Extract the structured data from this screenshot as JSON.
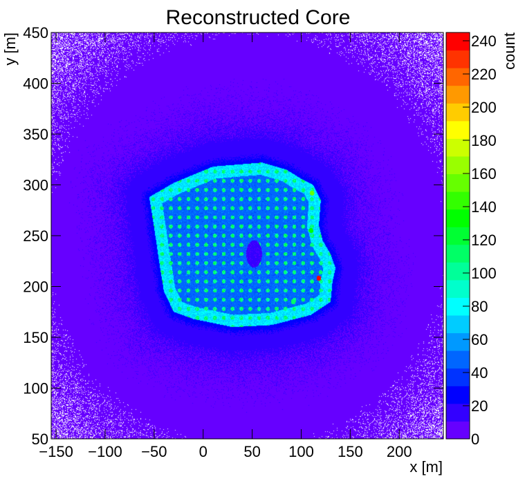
{
  "chart_data": {
    "type": "heatmap",
    "title": "Reconstructed Core",
    "xlabel": "x [m]",
    "ylabel": "y [m]",
    "zlabel": "count",
    "xlim": [
      -155,
      245
    ],
    "ylim": [
      50,
      450
    ],
    "zlim": [
      0,
      245
    ],
    "x_ticks": [
      -150,
      -100,
      -50,
      0,
      50,
      100,
      150,
      200
    ],
    "x_tick_labels": [
      "−150",
      "−100",
      "−50",
      "0",
      "50",
      "100",
      "150",
      "200"
    ],
    "y_ticks": [
      50,
      100,
      150,
      200,
      250,
      300,
      350,
      400,
      450
    ],
    "y_tick_labels": [
      "50",
      "100",
      "150",
      "200",
      "250",
      "300",
      "350",
      "400",
      "450"
    ],
    "z_ticks": [
      0,
      20,
      40,
      60,
      80,
      100,
      120,
      140,
      160,
      180,
      200,
      220,
      240
    ],
    "z_tick_labels": [
      "0",
      "20",
      "40",
      "60",
      "80",
      "100",
      "120",
      "140",
      "160",
      "180",
      "200",
      "220",
      "240"
    ],
    "palette": [
      "#6600ff",
      "#3300ff",
      "#0000ff",
      "#0033ff",
      "#0066ff",
      "#0099ff",
      "#00ccff",
      "#00ffff",
      "#00ffcc",
      "#00ff99",
      "#00ff66",
      "#00ff33",
      "#00ff00",
      "#33ff00",
      "#66ff00",
      "#99ff00",
      "#ccff00",
      "#ffff00",
      "#ffcc00",
      "#ff9900",
      "#ff6600",
      "#ff3300",
      "#ff0000"
    ],
    "empty_bin_color": "#ffffff",
    "grid": false,
    "background_level": 8,
    "array_footprint": [
      [
        -55,
        288
      ],
      [
        -30,
        302
      ],
      [
        10,
        318
      ],
      [
        60,
        322
      ],
      [
        85,
        315
      ],
      [
        100,
        306
      ],
      [
        112,
        300
      ],
      [
        120,
        285
      ],
      [
        118,
        260
      ],
      [
        122,
        245
      ],
      [
        130,
        232
      ],
      [
        135,
        218
      ],
      [
        132,
        205
      ],
      [
        130,
        185
      ],
      [
        110,
        172
      ],
      [
        70,
        162
      ],
      [
        30,
        160
      ],
      [
        -10,
        168
      ],
      [
        -30,
        175
      ],
      [
        -40,
        195
      ],
      [
        -45,
        225
      ],
      [
        -50,
        258
      ]
    ],
    "array_level": 42,
    "footprint_rim_level": 65,
    "halo_level": 18,
    "hole": {
      "x": 52,
      "y": 232,
      "level": 10
    },
    "detector_spots": {
      "level": 90,
      "spacing": 9
    },
    "hot_spots": [
      {
        "x": 118,
        "y": 208,
        "value": 245
      },
      {
        "x": 111,
        "y": 292,
        "value": 150
      },
      {
        "x": 110,
        "y": 255,
        "value": 130
      },
      {
        "x": 92,
        "y": 185,
        "value": 110
      }
    ]
  }
}
